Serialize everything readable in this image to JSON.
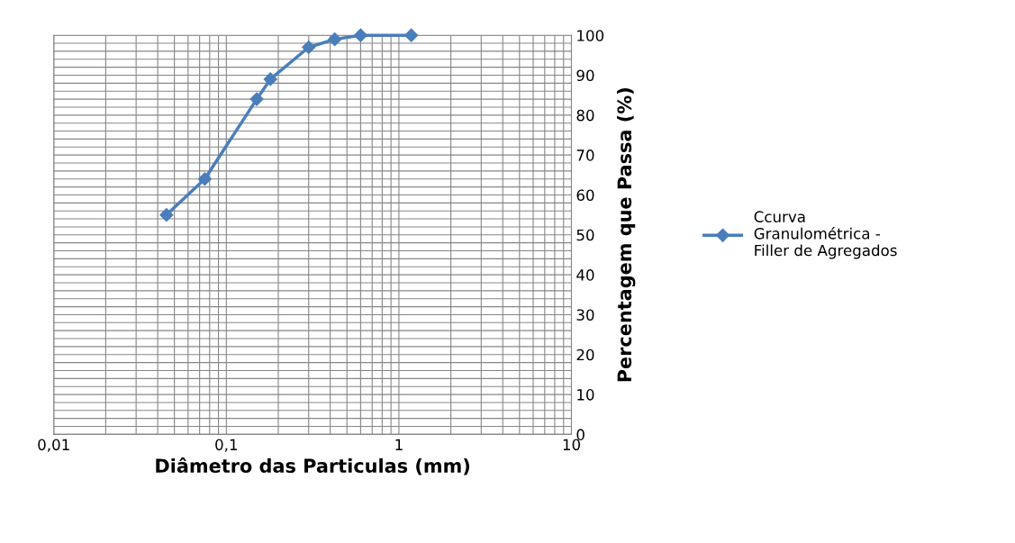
{
  "chart_data": {
    "type": "line",
    "xlabel": "Diâmetro das Particulas (mm)",
    "ylabel": "Percentagem que Passa (%)",
    "x": [
      0.045,
      0.075,
      0.15,
      0.18,
      0.3,
      0.425,
      0.6,
      1.18
    ],
    "series": [
      {
        "name": "Ccurva\nGranulométrica -\nFiller de Agregados",
        "color": "#4a7ebb",
        "values": [
          55,
          64,
          84,
          89,
          97,
          99,
          100,
          100
        ]
      }
    ],
    "log": "x",
    "xlim": [
      0.01,
      10
    ],
    "xticks": [
      {
        "value": 0.01,
        "label": "0,01"
      },
      {
        "value": 0.1,
        "label": "0,1"
      },
      {
        "value": 1,
        "label": "1"
      },
      {
        "value": 10,
        "label": "10"
      }
    ],
    "ylim": [
      0,
      100
    ],
    "yticks": [
      0,
      10,
      20,
      30,
      40,
      50,
      60,
      70,
      80,
      90,
      100
    ],
    "grid": true,
    "legend": "right",
    "marker": "diamond",
    "line_style": "solid"
  }
}
